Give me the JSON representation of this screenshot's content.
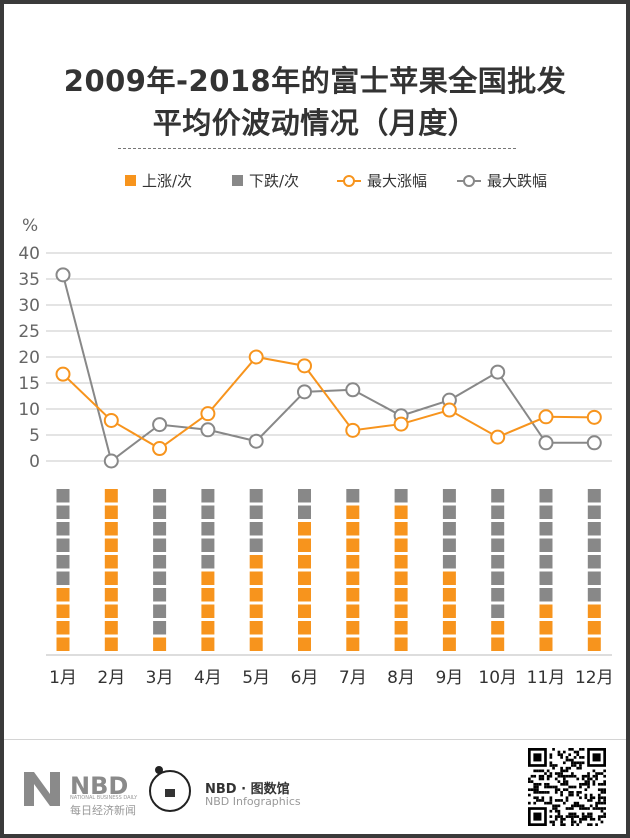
{
  "title_line1": "2009年-2018年的富士苹果全国批发",
  "title_line2": "平均价波动情况（月度）",
  "legend": {
    "up_times": "上涨/次",
    "down_times": "下跌/次",
    "max_rise": "最大涨幅",
    "max_fall": "最大跌幅"
  },
  "colors": {
    "orange": "#f7941d",
    "gray": "#888888",
    "axis": "#c8c8c8"
  },
  "chart_data": {
    "type": "line",
    "ylabel": "%",
    "ylim": [
      0,
      40
    ],
    "yticks": [
      0,
      5,
      10,
      15,
      20,
      25,
      30,
      35,
      40
    ],
    "categories": [
      "1月",
      "2月",
      "3月",
      "4月",
      "5月",
      "6月",
      "7月",
      "8月",
      "9月",
      "10月",
      "11月",
      "12月"
    ],
    "series": [
      {
        "name": "最大涨幅",
        "values": [
          16.7,
          7.8,
          2.4,
          9.1,
          20,
          18.3,
          5.9,
          7.1,
          9.8,
          4.6,
          8.5,
          8.4
        ]
      },
      {
        "name": "最大跌幅",
        "values": [
          35.8,
          0,
          7,
          6,
          3.8,
          13.3,
          13.7,
          8.7,
          11.7,
          17.1,
          3.5,
          3.5
        ]
      }
    ],
    "bars": {
      "total": 10,
      "up_times": [
        4,
        10,
        1,
        5,
        6,
        8,
        9,
        9,
        5,
        2,
        3,
        3
      ],
      "down_times": [
        6,
        0,
        9,
        5,
        4,
        2,
        1,
        1,
        5,
        8,
        7,
        7
      ]
    }
  },
  "footer": {
    "nbd": "NBD",
    "nbd_en": "NATIONAL BUSINESS DAILY",
    "nbd_cn": "每日经济新闻",
    "info_title": "NBD · 图数馆",
    "info_sub": "NBD Infographics"
  }
}
